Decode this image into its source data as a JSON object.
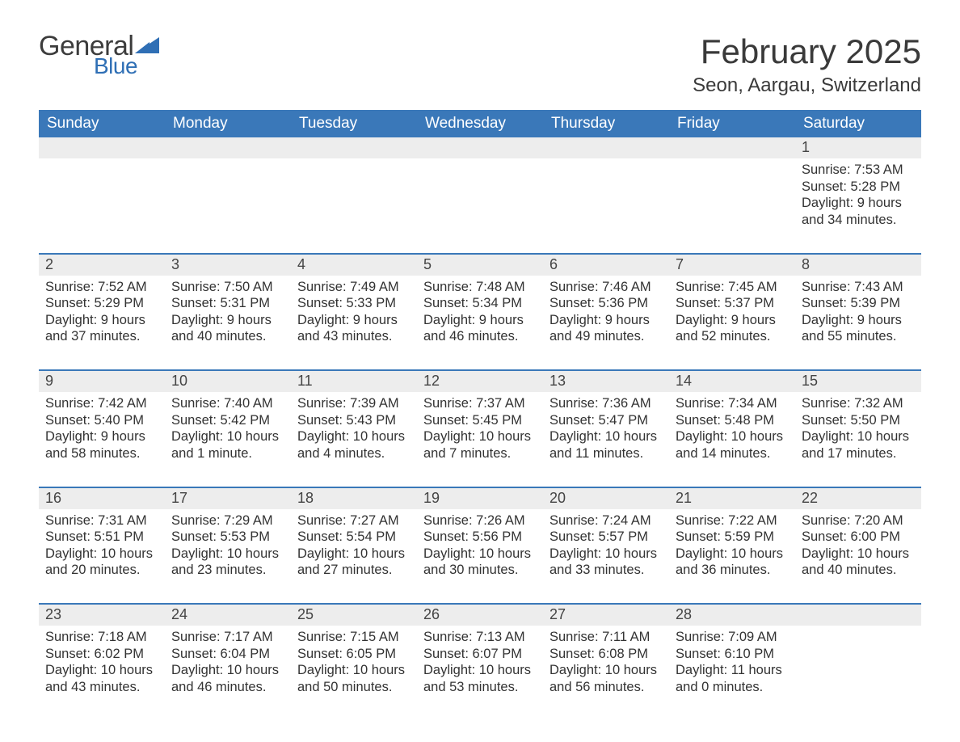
{
  "logo": {
    "text_general": "General",
    "text_blue": "Blue",
    "mark_color": "#2f6fb5"
  },
  "header": {
    "title": "February 2025",
    "location": "Seon, Aargau, Switzerland"
  },
  "calendar": {
    "type": "table",
    "day_headers": [
      "Sunday",
      "Monday",
      "Tuesday",
      "Wednesday",
      "Thursday",
      "Friday",
      "Saturday"
    ],
    "header_bg": "#3a78b9",
    "header_text_color": "#ffffff",
    "daynum_bg": "#ededed",
    "divider_color": "#3a78b9",
    "text_color": "#333333",
    "background_color": "#ffffff",
    "cell_fontsize": 16.5,
    "header_fontsize": 19,
    "weeks": [
      [
        {
          "day": ""
        },
        {
          "day": ""
        },
        {
          "day": ""
        },
        {
          "day": ""
        },
        {
          "day": ""
        },
        {
          "day": ""
        },
        {
          "day": "1",
          "sunrise": "Sunrise: 7:53 AM",
          "sunset": "Sunset: 5:28 PM",
          "dl1": "Daylight: 9 hours",
          "dl2": "and 34 minutes."
        }
      ],
      [
        {
          "day": "2",
          "sunrise": "Sunrise: 7:52 AM",
          "sunset": "Sunset: 5:29 PM",
          "dl1": "Daylight: 9 hours",
          "dl2": "and 37 minutes."
        },
        {
          "day": "3",
          "sunrise": "Sunrise: 7:50 AM",
          "sunset": "Sunset: 5:31 PM",
          "dl1": "Daylight: 9 hours",
          "dl2": "and 40 minutes."
        },
        {
          "day": "4",
          "sunrise": "Sunrise: 7:49 AM",
          "sunset": "Sunset: 5:33 PM",
          "dl1": "Daylight: 9 hours",
          "dl2": "and 43 minutes."
        },
        {
          "day": "5",
          "sunrise": "Sunrise: 7:48 AM",
          "sunset": "Sunset: 5:34 PM",
          "dl1": "Daylight: 9 hours",
          "dl2": "and 46 minutes."
        },
        {
          "day": "6",
          "sunrise": "Sunrise: 7:46 AM",
          "sunset": "Sunset: 5:36 PM",
          "dl1": "Daylight: 9 hours",
          "dl2": "and 49 minutes."
        },
        {
          "day": "7",
          "sunrise": "Sunrise: 7:45 AM",
          "sunset": "Sunset: 5:37 PM",
          "dl1": "Daylight: 9 hours",
          "dl2": "and 52 minutes."
        },
        {
          "day": "8",
          "sunrise": "Sunrise: 7:43 AM",
          "sunset": "Sunset: 5:39 PM",
          "dl1": "Daylight: 9 hours",
          "dl2": "and 55 minutes."
        }
      ],
      [
        {
          "day": "9",
          "sunrise": "Sunrise: 7:42 AM",
          "sunset": "Sunset: 5:40 PM",
          "dl1": "Daylight: 9 hours",
          "dl2": "and 58 minutes."
        },
        {
          "day": "10",
          "sunrise": "Sunrise: 7:40 AM",
          "sunset": "Sunset: 5:42 PM",
          "dl1": "Daylight: 10 hours",
          "dl2": "and 1 minute."
        },
        {
          "day": "11",
          "sunrise": "Sunrise: 7:39 AM",
          "sunset": "Sunset: 5:43 PM",
          "dl1": "Daylight: 10 hours",
          "dl2": "and 4 minutes."
        },
        {
          "day": "12",
          "sunrise": "Sunrise: 7:37 AM",
          "sunset": "Sunset: 5:45 PM",
          "dl1": "Daylight: 10 hours",
          "dl2": "and 7 minutes."
        },
        {
          "day": "13",
          "sunrise": "Sunrise: 7:36 AM",
          "sunset": "Sunset: 5:47 PM",
          "dl1": "Daylight: 10 hours",
          "dl2": "and 11 minutes."
        },
        {
          "day": "14",
          "sunrise": "Sunrise: 7:34 AM",
          "sunset": "Sunset: 5:48 PM",
          "dl1": "Daylight: 10 hours",
          "dl2": "and 14 minutes."
        },
        {
          "day": "15",
          "sunrise": "Sunrise: 7:32 AM",
          "sunset": "Sunset: 5:50 PM",
          "dl1": "Daylight: 10 hours",
          "dl2": "and 17 minutes."
        }
      ],
      [
        {
          "day": "16",
          "sunrise": "Sunrise: 7:31 AM",
          "sunset": "Sunset: 5:51 PM",
          "dl1": "Daylight: 10 hours",
          "dl2": "and 20 minutes."
        },
        {
          "day": "17",
          "sunrise": "Sunrise: 7:29 AM",
          "sunset": "Sunset: 5:53 PM",
          "dl1": "Daylight: 10 hours",
          "dl2": "and 23 minutes."
        },
        {
          "day": "18",
          "sunrise": "Sunrise: 7:27 AM",
          "sunset": "Sunset: 5:54 PM",
          "dl1": "Daylight: 10 hours",
          "dl2": "and 27 minutes."
        },
        {
          "day": "19",
          "sunrise": "Sunrise: 7:26 AM",
          "sunset": "Sunset: 5:56 PM",
          "dl1": "Daylight: 10 hours",
          "dl2": "and 30 minutes."
        },
        {
          "day": "20",
          "sunrise": "Sunrise: 7:24 AM",
          "sunset": "Sunset: 5:57 PM",
          "dl1": "Daylight: 10 hours",
          "dl2": "and 33 minutes."
        },
        {
          "day": "21",
          "sunrise": "Sunrise: 7:22 AM",
          "sunset": "Sunset: 5:59 PM",
          "dl1": "Daylight: 10 hours",
          "dl2": "and 36 minutes."
        },
        {
          "day": "22",
          "sunrise": "Sunrise: 7:20 AM",
          "sunset": "Sunset: 6:00 PM",
          "dl1": "Daylight: 10 hours",
          "dl2": "and 40 minutes."
        }
      ],
      [
        {
          "day": "23",
          "sunrise": "Sunrise: 7:18 AM",
          "sunset": "Sunset: 6:02 PM",
          "dl1": "Daylight: 10 hours",
          "dl2": "and 43 minutes."
        },
        {
          "day": "24",
          "sunrise": "Sunrise: 7:17 AM",
          "sunset": "Sunset: 6:04 PM",
          "dl1": "Daylight: 10 hours",
          "dl2": "and 46 minutes."
        },
        {
          "day": "25",
          "sunrise": "Sunrise: 7:15 AM",
          "sunset": "Sunset: 6:05 PM",
          "dl1": "Daylight: 10 hours",
          "dl2": "and 50 minutes."
        },
        {
          "day": "26",
          "sunrise": "Sunrise: 7:13 AM",
          "sunset": "Sunset: 6:07 PM",
          "dl1": "Daylight: 10 hours",
          "dl2": "and 53 minutes."
        },
        {
          "day": "27",
          "sunrise": "Sunrise: 7:11 AM",
          "sunset": "Sunset: 6:08 PM",
          "dl1": "Daylight: 10 hours",
          "dl2": "and 56 minutes."
        },
        {
          "day": "28",
          "sunrise": "Sunrise: 7:09 AM",
          "sunset": "Sunset: 6:10 PM",
          "dl1": "Daylight: 11 hours",
          "dl2": "and 0 minutes."
        },
        {
          "day": ""
        }
      ]
    ]
  }
}
